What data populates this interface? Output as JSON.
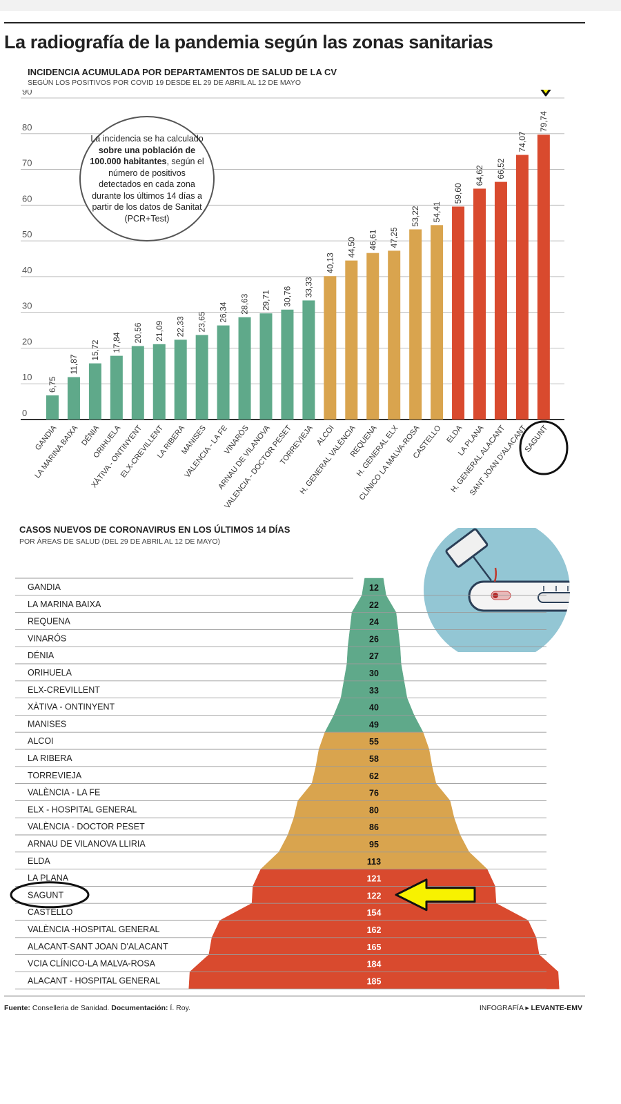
{
  "page": {
    "title": "La radiografía de la pandemia según las zonas sanitarias",
    "source_label": "Fuente:",
    "source_value": " Conselleria de Sanidad. ",
    "doc_label": "Documentación:",
    "doc_value": " Í. Roy.",
    "credit_label": "INFOGRAFÍA ▸ ",
    "credit_value": "LEVANTE-EMV"
  },
  "colors": {
    "green": "#5fa98a",
    "orange": "#d9a44e",
    "red": "#d94a2e",
    "grid": "#bdbdbd",
    "highlight_arrow": "#f7f200",
    "needle_circle": "#93c6d4"
  },
  "callout": {
    "parts": [
      {
        "text": "La incidencia se ha calculado ",
        "bold": false
      },
      {
        "text": "sobre una población de 100.000 habitantes",
        "bold": true
      },
      {
        "text": ", según el número de positivos detectados en cada zona durante los últimos 14 días a partir de los datos de Sanitat (PCR+Test)",
        "bold": false
      }
    ]
  },
  "annotations": {
    "highlight": "SAGUNT",
    "icons": [
      "down-arrow-icon",
      "left-arrow-icon",
      "circle-marker-icon",
      "syringe-icon"
    ]
  },
  "chart_data": [
    {
      "type": "bar",
      "title": "INCIDENCIA ACUMULADA POR DEPARTAMENTOS DE SALUD DE LA CV",
      "subtitle": "SEGÚN LOS POSITIVOS POR COVID 19 DESDE EL 29 DE ABRIL AL 12 DE MAYO",
      "categories": [
        "GANDIA",
        "LA MARINA BAIXA",
        "DÉNIA",
        "ORIHUELA",
        "XÀTIVA - ONTINYENT",
        "ELX-CREVILLENT",
        "LA RIBERA",
        "MANISES",
        "VALENCIA - LA FE",
        "VINARÒS",
        "ARNAU DE VILANOVA",
        "VALENCIA - DOCTOR PESET",
        "TORREVIEJA",
        "ALCOI",
        "H. GENERAL VALÈNCIA",
        "REQUENA",
        "H. GENERAL ELX",
        "CLÍNICO LA MALVA-ROSA",
        "CASTELLO",
        "ELDA",
        "LA PLANA",
        "H. GENERAL ALACANT",
        "SANT JOAN D'ALACANT",
        "SAGUNT"
      ],
      "values": [
        6.75,
        11.87,
        15.72,
        17.84,
        20.56,
        21.09,
        22.33,
        23.65,
        26.34,
        28.63,
        29.71,
        30.76,
        33.33,
        40.13,
        44.5,
        46.61,
        47.25,
        53.22,
        54.41,
        59.6,
        64.62,
        66.52,
        74.07,
        79.74
      ],
      "value_labels": [
        "6,75",
        "11,87",
        "15,72",
        "17,84",
        "20,56",
        "21,09",
        "22,33",
        "23,65",
        "26,34",
        "28,63",
        "29,71",
        "30,76",
        "33,33",
        "40,13",
        "44,50",
        "46,61",
        "47,25",
        "53,22",
        "54,41",
        "59,60",
        "64,62",
        "66,52",
        "74,07",
        "79,74"
      ],
      "color_groups": [
        "green",
        "green",
        "green",
        "green",
        "green",
        "green",
        "green",
        "green",
        "green",
        "green",
        "green",
        "green",
        "green",
        "orange",
        "orange",
        "orange",
        "orange",
        "orange",
        "orange",
        "red",
        "red",
        "red",
        "red",
        "red"
      ],
      "ylim": [
        0,
        90
      ],
      "yticks": [
        0,
        10,
        20,
        30,
        40,
        50,
        60,
        70,
        80,
        90
      ],
      "grid": true
    },
    {
      "type": "bar",
      "orientation": "horizontal-centered",
      "title": "CASOS NUEVOS DE CORONAVIRUS EN LOS ÚLTIMOS 14 DÍAS",
      "subtitle": "POR ÁREAS DE SALUD (DEL 29 DE ABRIL AL 12 DE MAYO)",
      "categories": [
        "GANDIA",
        "LA MARINA BAIXA",
        "REQUENA",
        "VINARÓS",
        "DÉNIA",
        "ORIHUELA",
        "ELX-CREVILLENT",
        "XÀTIVA - ONTINYENT",
        "MANISES",
        "ALCOI",
        "LA RIBERA",
        "TORREVIEJA",
        "VALÈNCIA - LA FE",
        "ELX - HOSPITAL GENERAL",
        "VALÈNCIA - DOCTOR PESET",
        "ARNAU DE VILANOVA LLIRIA",
        "ELDA",
        "LA PLANA",
        "SAGUNT",
        "CASTELLO",
        "VALÈNCIA -HOSPITAL GENERAL",
        "ALACANT-SANT JOAN D'ALACANT",
        "VCIA CLÍNICO-LA MALVA-ROSA",
        "ALACANT - HOSPITAL GENERAL"
      ],
      "values": [
        12,
        22,
        24,
        26,
        27,
        30,
        33,
        40,
        49,
        55,
        58,
        62,
        76,
        80,
        86,
        95,
        113,
        121,
        122,
        154,
        162,
        165,
        184,
        185
      ],
      "color_groups": [
        "green",
        "green",
        "green",
        "green",
        "green",
        "green",
        "green",
        "green",
        "green",
        "orange",
        "orange",
        "orange",
        "orange",
        "orange",
        "orange",
        "orange",
        "orange",
        "red",
        "red",
        "red",
        "red",
        "red",
        "red",
        "red"
      ]
    }
  ]
}
